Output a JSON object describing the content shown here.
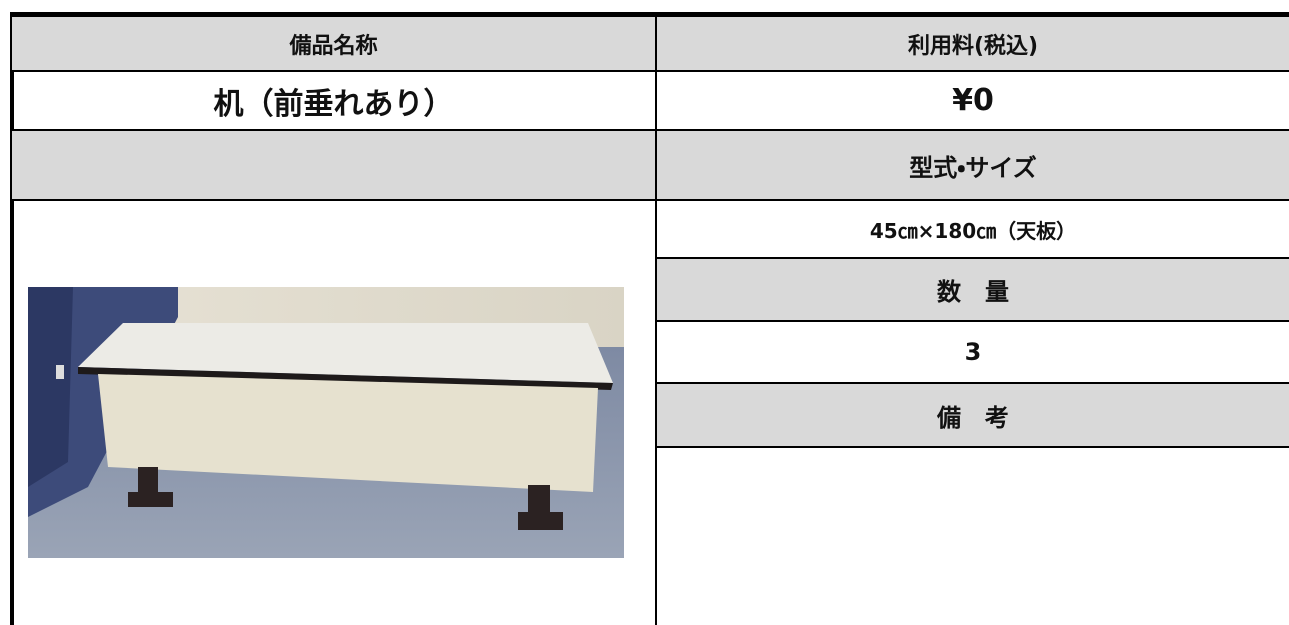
{
  "table": {
    "headers": [
      "備品名称",
      "利用料(税込)"
    ],
    "item": {
      "name": "机（前垂れあり）",
      "price": "¥0"
    },
    "details": [
      {
        "label": "型式・サイズ",
        "value": "45㎝×180㎝（天板）"
      },
      {
        "label": "数　量",
        "value": "3"
      },
      {
        "label": "備　考"
      }
    ]
  }
}
